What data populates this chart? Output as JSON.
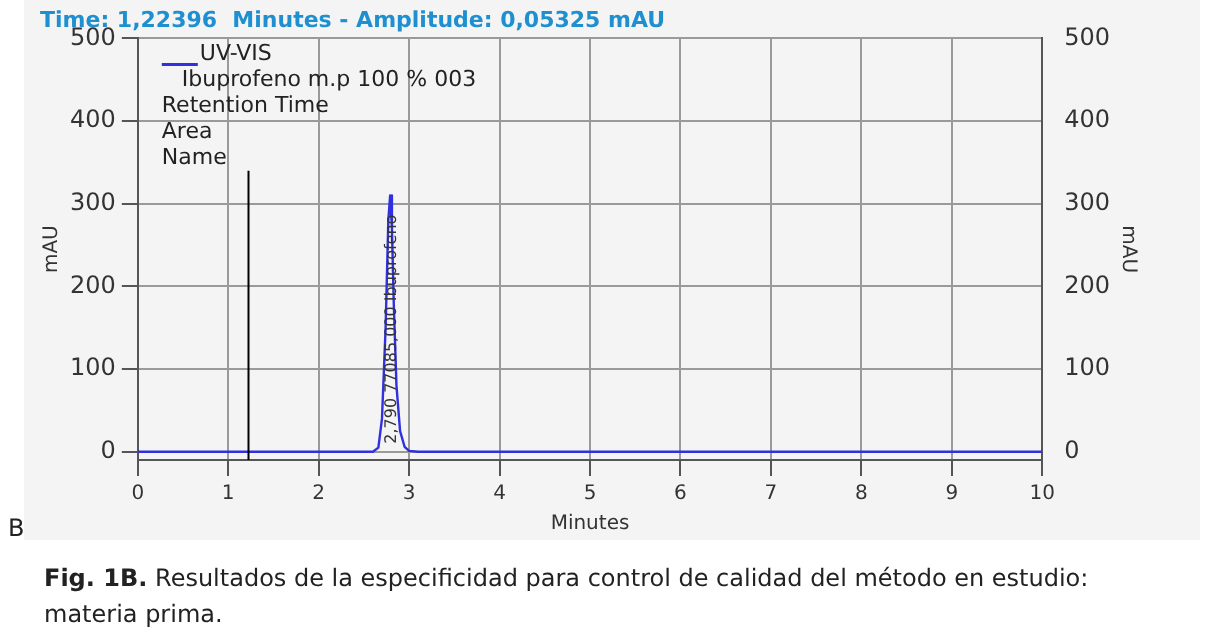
{
  "chart_data": {
    "type": "line",
    "title": "Time: 1,22396  Minutes - Amplitude: 0,05325 mAU",
    "xlabel": "Minutes",
    "ylabel": "mAU",
    "y2label": "mAU",
    "x": [
      0,
      2.6,
      2.66,
      2.7,
      2.74,
      2.77,
      2.79,
      2.81,
      2.83,
      2.86,
      2.9,
      2.95,
      3.0,
      3.1,
      10
    ],
    "series": [
      {
        "name": "UV-VIS",
        "color": "#3030e0",
        "values": [
          0,
          0,
          5,
          40,
          150,
          280,
          310,
          270,
          180,
          80,
          25,
          6,
          1,
          0,
          0
        ]
      }
    ],
    "xlim": [
      0,
      10
    ],
    "xticks": [
      0,
      1,
      2,
      3,
      4,
      5,
      6,
      7,
      8,
      9,
      10
    ],
    "ylim": [
      -10,
      500
    ],
    "yticks": [
      0,
      100,
      200,
      300,
      400,
      500
    ],
    "y2lim": [
      -10,
      500
    ],
    "y2ticks": [
      0,
      100,
      200,
      300,
      400,
      500
    ],
    "ref_lines": [
      {
        "axis": "x",
        "value": 1.22396,
        "color": "#000000"
      }
    ],
    "annotations": [
      "Ibuprofeno m.p 100 % 003",
      "Retention Time",
      "Area",
      "Name",
      "B",
      "Fig. 1B. Resultados de la especificidad para control de calidad del método en estudio: materia prima.",
      "2,790 77085,000 Ibuprofeno"
    ],
    "grid": true,
    "legend": "top left",
    "line_style": "solid",
    "marker": "none"
  }
}
